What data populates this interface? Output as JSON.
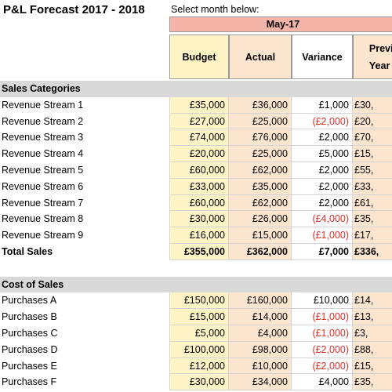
{
  "title": "P&L Forecast 2017 - 2018",
  "select_label": "Select month below:",
  "selected_month": "May-17",
  "headers": {
    "budget": "Budget",
    "actual": "Actual",
    "variance": "Variance",
    "prev_line1": "Previo",
    "prev_line2": "Year"
  },
  "sales_section": "Sales Categories",
  "sales_rows": [
    {
      "label": "Revenue Stream 1",
      "budget": "£35,000",
      "actual": "£36,000",
      "variance": "£1,000",
      "prev": "£30,"
    },
    {
      "label": "Revenue Stream 2",
      "budget": "£27,000",
      "actual": "£25,000",
      "variance": "(£2,000)",
      "prev": "£20,"
    },
    {
      "label": "Revenue Stream 3",
      "budget": "£74,000",
      "actual": "£76,000",
      "variance": "£2,000",
      "prev": "£70,"
    },
    {
      "label": "Revenue Stream 4",
      "budget": "£20,000",
      "actual": "£25,000",
      "variance": "£5,000",
      "prev": "£15,"
    },
    {
      "label": "Revenue Stream 5",
      "budget": "£60,000",
      "actual": "£62,000",
      "variance": "£2,000",
      "prev": "£55,"
    },
    {
      "label": "Revenue Stream 6",
      "budget": "£33,000",
      "actual": "£35,000",
      "variance": "£2,000",
      "prev": "£33,"
    },
    {
      "label": "Revenue Stream 7",
      "budget": "£60,000",
      "actual": "£62,000",
      "variance": "£2,000",
      "prev": "£61,"
    },
    {
      "label": "Revenue Stream 8",
      "budget": "£30,000",
      "actual": "£26,000",
      "variance": "(£4,000)",
      "prev": "£35,"
    },
    {
      "label": "Revenue Stream 9",
      "budget": "£16,000",
      "actual": "£15,000",
      "variance": "(£1,000)",
      "prev": "£17,"
    }
  ],
  "total_sales": {
    "label": "Total Sales",
    "budget": "£355,000",
    "actual": "£362,000",
    "variance": "£7,000",
    "prev": "£336,"
  },
  "cost_section": "Cost of Sales",
  "cost_rows": [
    {
      "label": "Purchases A",
      "budget": "£150,000",
      "actual": "£160,000",
      "variance": "£10,000",
      "prev": "£14,"
    },
    {
      "label": "Purchases B",
      "budget": "£15,000",
      "actual": "£14,000",
      "variance": "(£1,000)",
      "prev": "£13,"
    },
    {
      "label": "Purchases C",
      "budget": "£5,000",
      "actual": "£4,000",
      "variance": "(£1,000)",
      "prev": "£3,"
    },
    {
      "label": "Purchases D",
      "budget": "£100,000",
      "actual": "£98,000",
      "variance": "(£2,000)",
      "prev": "£88,"
    },
    {
      "label": "Purchases E",
      "budget": "£12,000",
      "actual": "£10,000",
      "variance": "(£2,000)",
      "prev": "£15,"
    },
    {
      "label": "Purchases F",
      "budget": "£30,000",
      "actual": "£34,000",
      "variance": "£4,000",
      "prev": "£35,"
    }
  ],
  "colors": {
    "month_bg": "#f4b5a8",
    "budget_bg": "#fdf3c4",
    "actual_bg": "#fce5cf",
    "section_bg": "#d9d9d9",
    "negative_text": "#e0302a"
  }
}
